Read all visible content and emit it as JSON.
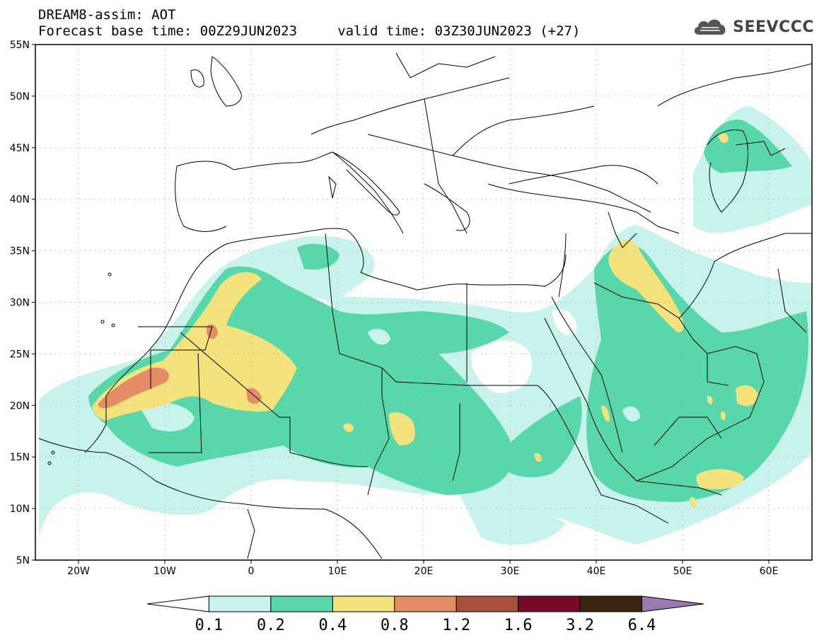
{
  "header": {
    "line1": "DREAM8-assim: AOT",
    "line2": "Forecast base time: 00Z29JUN2023     valid time: 03Z30JUN2023 (+27)"
  },
  "logo": {
    "text": "SEEVCCC",
    "icon": "cloud-logo-icon"
  },
  "map": {
    "lon_range": [
      -25,
      65
    ],
    "lat_range": [
      5,
      55
    ],
    "lat_ticks": [
      {
        "value": 55,
        "label": "55N"
      },
      {
        "value": 50,
        "label": "50N"
      },
      {
        "value": 45,
        "label": "45N"
      },
      {
        "value": 40,
        "label": "40N"
      },
      {
        "value": 35,
        "label": "35N"
      },
      {
        "value": 30,
        "label": "30N"
      },
      {
        "value": 25,
        "label": "25N"
      },
      {
        "value": 20,
        "label": "20N"
      },
      {
        "value": 15,
        "label": "15N"
      },
      {
        "value": 10,
        "label": "10N"
      },
      {
        "value": 5,
        "label": "5N"
      }
    ],
    "lon_ticks": [
      {
        "value": -20,
        "label": "20W"
      },
      {
        "value": -10,
        "label": "10W"
      },
      {
        "value": 0,
        "label": "0"
      },
      {
        "value": 10,
        "label": "10E"
      },
      {
        "value": 20,
        "label": "20E"
      },
      {
        "value": 30,
        "label": "30E"
      },
      {
        "value": 40,
        "label": "40E"
      },
      {
        "value": 50,
        "label": "50E"
      },
      {
        "value": 60,
        "label": "60E"
      }
    ],
    "grid": "dotted",
    "colors": {
      "lvl1": "#c8f2ec",
      "lvl2": "#58d8aa",
      "lvl3": "#f4e27c",
      "lvl4": "#e48c66",
      "lvl5": "#a8503c"
    }
  },
  "colorbar": {
    "labels": [
      "0.1",
      "0.2",
      "0.4",
      "0.8",
      "1.2",
      "1.6",
      "3.2",
      "6.4"
    ],
    "colors": [
      "#c8f2ec",
      "#58d8aa",
      "#f4e27c",
      "#e48c66",
      "#a8503c",
      "#7a0a28",
      "#3a2510"
    ],
    "under_color": "#ffffff",
    "over_color": "#9a78b4"
  }
}
